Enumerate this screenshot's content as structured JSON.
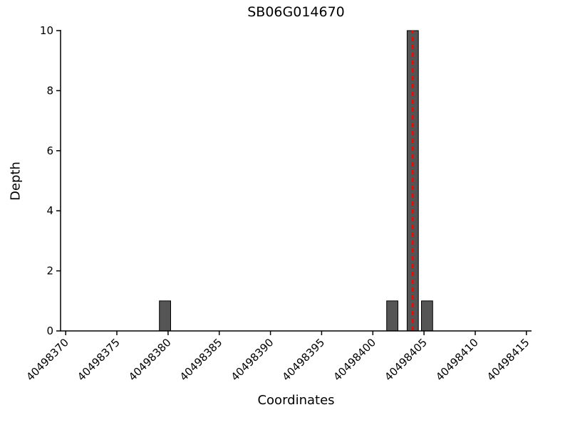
{
  "figure": {
    "background": "#ffffff"
  },
  "chart_data": {
    "type": "bar",
    "title": "SB06G014670",
    "xlabel": "Coordinates",
    "ylabel": "Depth",
    "xlim": [
      40498369.5,
      40498415.5
    ],
    "ylim": [
      0,
      10
    ],
    "xticks": [
      40498370,
      40498375,
      40498380,
      40498385,
      40498390,
      40498395,
      40498400,
      40498405,
      40498410,
      40498415
    ],
    "yticks": [
      0,
      2,
      4,
      6,
      8,
      10
    ],
    "grid": false,
    "legend": "none",
    "bar_width": 1.1,
    "bar_color": "#555555",
    "bar_edge_color": "#000000",
    "bars": [
      {
        "coordinate": 40498379.7,
        "depth": 1
      },
      {
        "coordinate": 40498401.9,
        "depth": 1
      },
      {
        "coordinate": 40498403.9,
        "depth": 10
      },
      {
        "coordinate": 40498405.3,
        "depth": 1
      }
    ],
    "marker_line": {
      "x": 40498403.9,
      "color": "#ff0000",
      "style": "dashed",
      "from": 0,
      "to": 10
    }
  }
}
